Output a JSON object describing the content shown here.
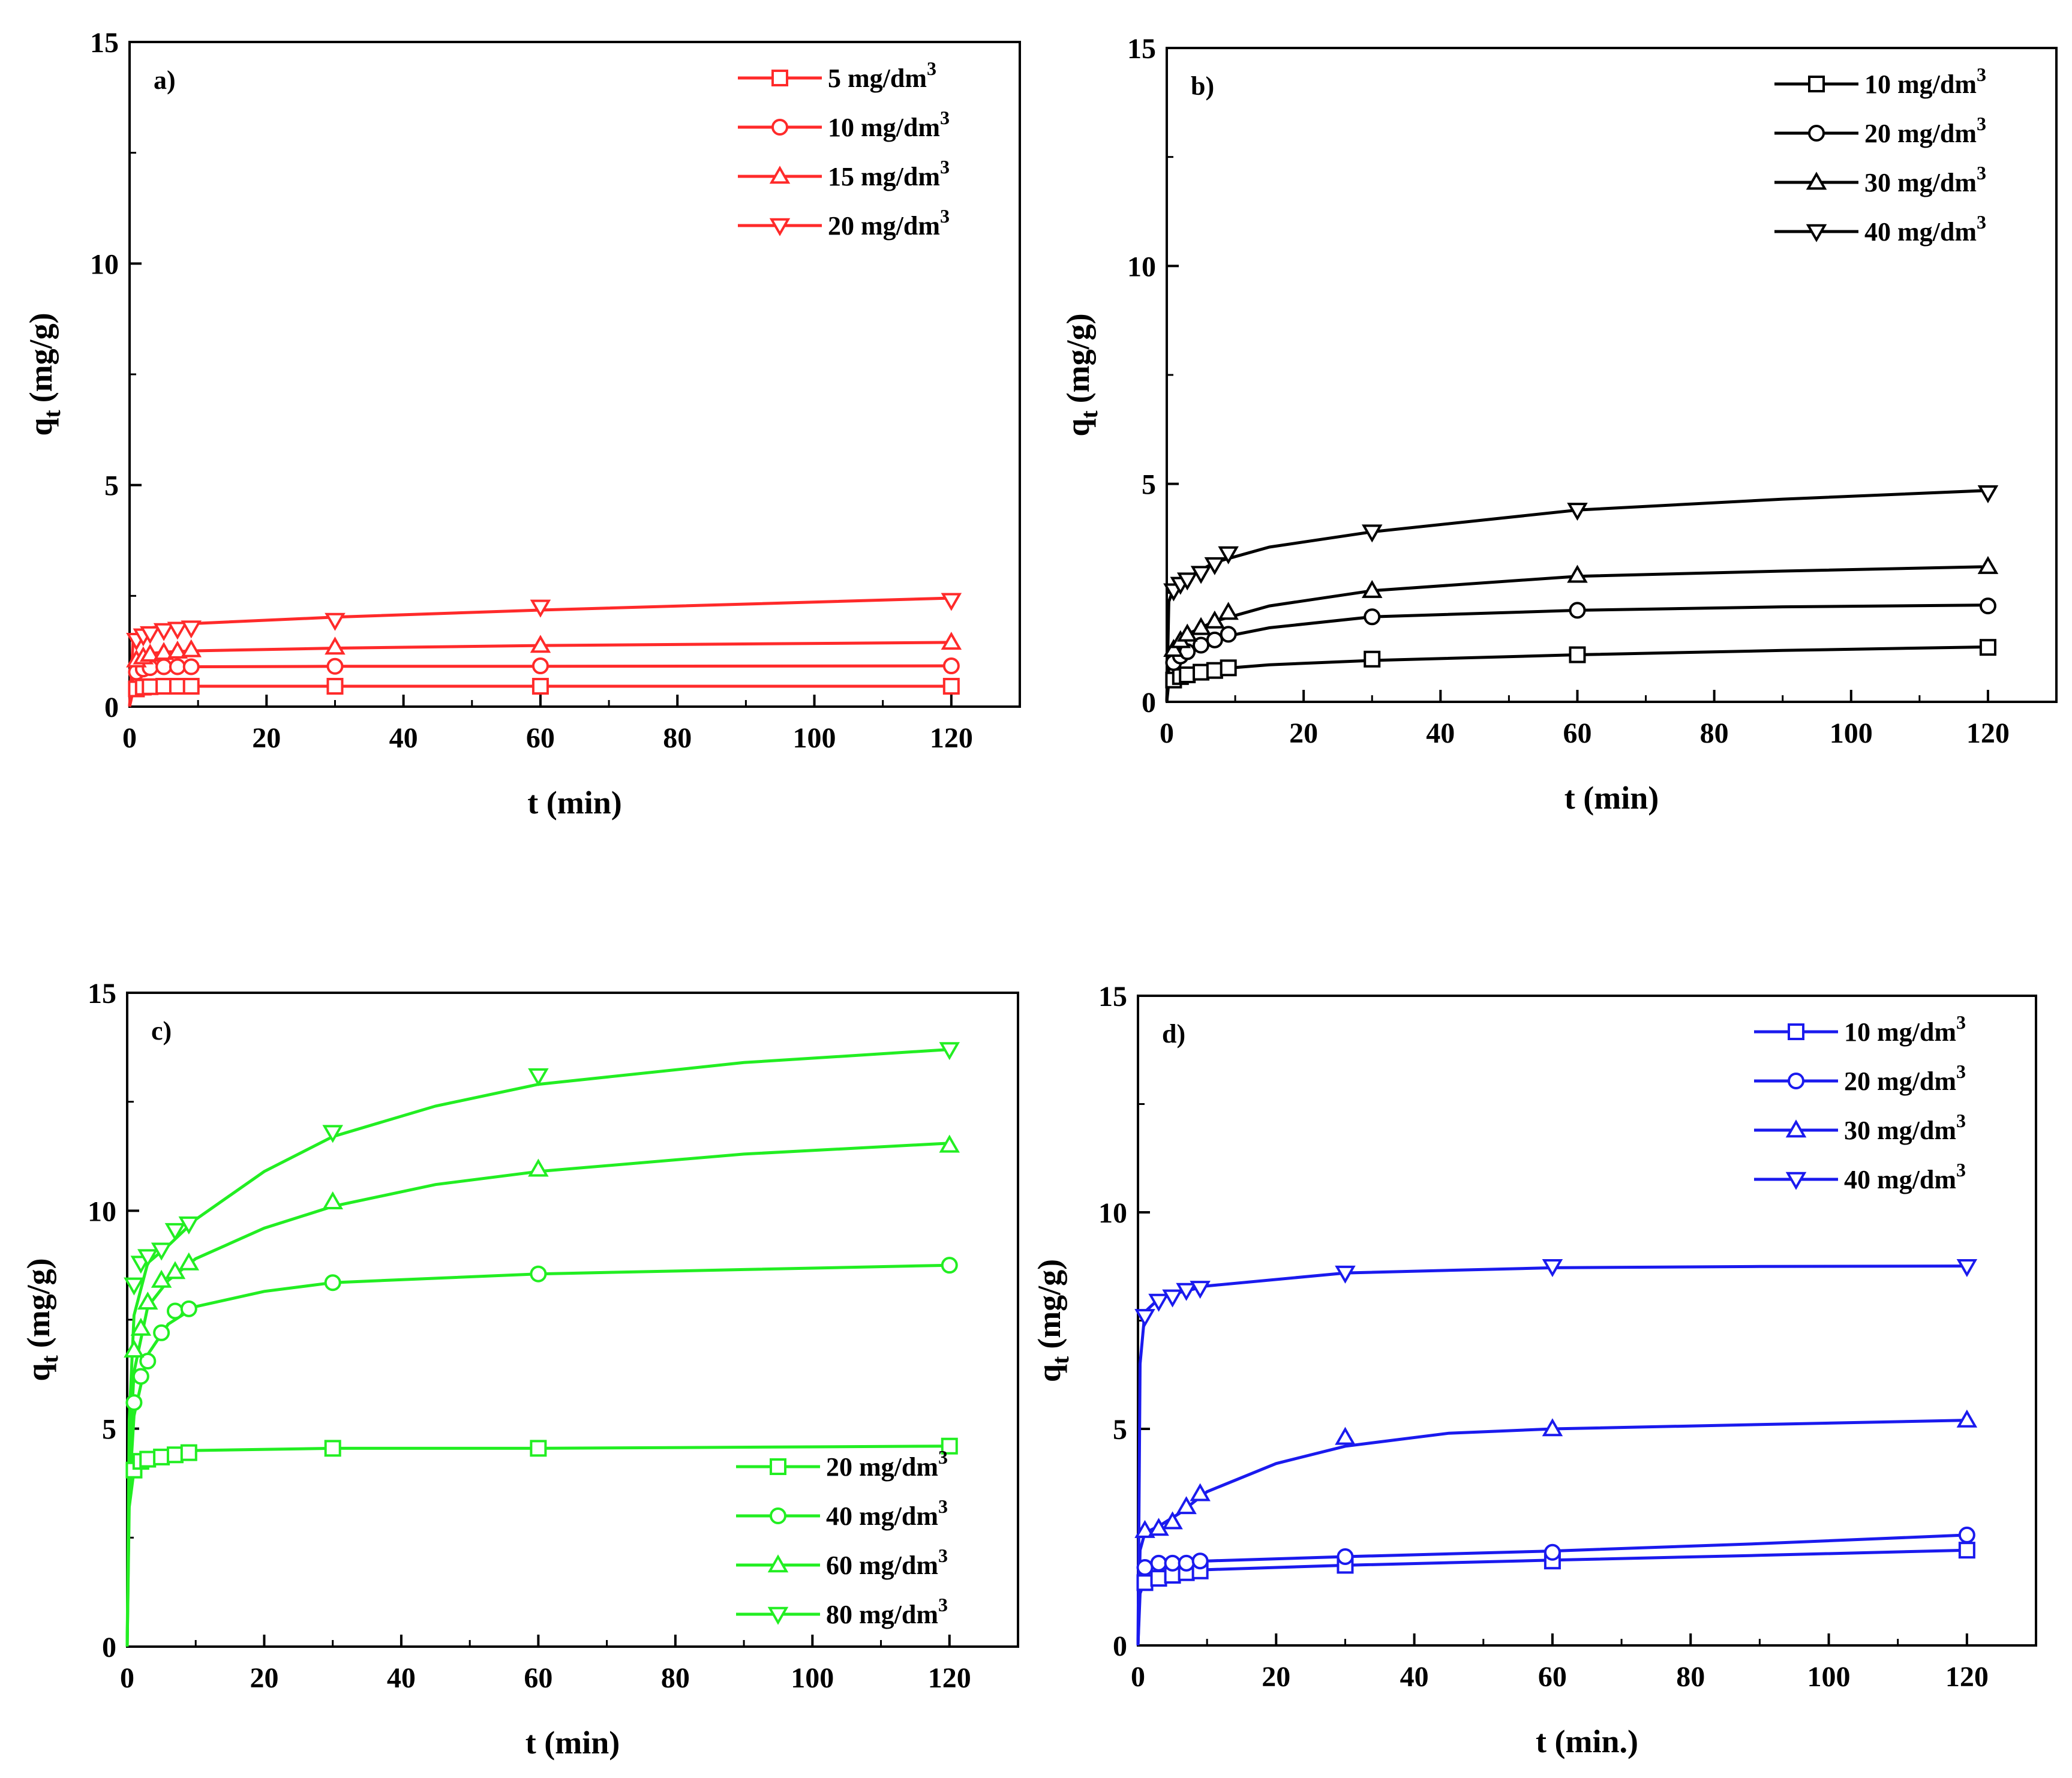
{
  "figure": {
    "panels": [
      {
        "id": "a",
        "panel_label": "a)",
        "color": "#ff2a2a",
        "legend_position": "top-right",
        "ylabel_main": "q",
        "ylabel_sub": "t",
        "ylabel_unit": "(mg/g)",
        "xlabel": "t (min)",
        "x_ticks": [
          "0",
          "20",
          "40",
          "60",
          "80",
          "100",
          "120"
        ],
        "y_ticks": [
          "0",
          "5",
          "10",
          "15"
        ]
      },
      {
        "id": "b",
        "panel_label": "b)",
        "color": "#000000",
        "legend_position": "top-right",
        "ylabel_main": "q",
        "ylabel_sub": "t",
        "ylabel_unit": "(mg/g)",
        "xlabel": "t (min)",
        "x_ticks": [
          "0",
          "20",
          "40",
          "60",
          "80",
          "100",
          "120"
        ],
        "y_ticks": [
          "0",
          "5",
          "10",
          "15"
        ]
      },
      {
        "id": "c",
        "panel_label": "c)",
        "color": "#22ee22",
        "legend_position": "bottom-right",
        "ylabel_main": "q",
        "ylabel_sub": "t",
        "ylabel_unit": "(mg/g)",
        "xlabel": "t (min)",
        "x_ticks": [
          "0",
          "20",
          "40",
          "60",
          "80",
          "100",
          "120"
        ],
        "y_ticks": [
          "0",
          "5",
          "10",
          "15"
        ]
      },
      {
        "id": "d",
        "panel_label": "d)",
        "color": "#1a1aee",
        "legend_position": "top-right",
        "ylabel_main": "q",
        "ylabel_sub": "t",
        "ylabel_unit": "(mg/g)",
        "xlabel": "t (min.)",
        "x_ticks": [
          "0",
          "20",
          "40",
          "60",
          "80",
          "100",
          "120"
        ],
        "y_ticks": [
          "0",
          "5",
          "10",
          "15"
        ]
      }
    ]
  },
  "chart_data": [
    {
      "type": "scatter",
      "panel": "a",
      "xlabel": "t (min)",
      "ylabel": "q_t (mg/g)",
      "xlim": [
        0,
        130
      ],
      "ylim": [
        0,
        15
      ],
      "x": [
        0,
        1,
        2,
        3,
        5,
        7,
        9,
        30,
        60,
        120
      ],
      "series": [
        {
          "name": "5 mg/dm3",
          "label_text": "5 mg/dm",
          "label_sup": "3",
          "marker": "square",
          "values": [
            0,
            0.4,
            0.44,
            0.45,
            0.46,
            0.46,
            0.46,
            0.46,
            0.46,
            0.46
          ]
        },
        {
          "name": "10 mg/dm3",
          "label_text": "10 mg/dm",
          "label_sup": "3",
          "marker": "circle",
          "values": [
            0,
            0.78,
            0.85,
            0.88,
            0.9,
            0.9,
            0.9,
            0.91,
            0.92,
            0.92
          ]
        },
        {
          "name": "15 mg/dm3",
          "label_text": "15 mg/dm",
          "label_sup": "3",
          "marker": "triangle-up",
          "values": [
            0,
            1.05,
            1.12,
            1.18,
            1.22,
            1.25,
            1.28,
            1.34,
            1.38,
            1.45
          ]
        },
        {
          "name": "20 mg/dm3",
          "label_text": "20 mg/dm",
          "label_sup": "3",
          "marker": "triangle-down",
          "values": [
            0,
            1.5,
            1.6,
            1.65,
            1.72,
            1.75,
            1.78,
            1.95,
            2.25,
            2.4
          ]
        }
      ],
      "fit_lines": [
        {
          "x": [
            0,
            0.5,
            1,
            2,
            5,
            10,
            30,
            60,
            120
          ],
          "values": [
            0,
            0.35,
            0.42,
            0.45,
            0.46,
            0.46,
            0.46,
            0.46,
            0.46
          ]
        },
        {
          "x": [
            0,
            0.5,
            1,
            2,
            5,
            10,
            30,
            60,
            120
          ],
          "values": [
            0,
            0.65,
            0.8,
            0.87,
            0.9,
            0.9,
            0.91,
            0.91,
            0.92
          ]
        },
        {
          "x": [
            0,
            0.5,
            1,
            2,
            5,
            10,
            30,
            60,
            120
          ],
          "values": [
            0,
            0.95,
            1.1,
            1.18,
            1.23,
            1.26,
            1.32,
            1.38,
            1.45
          ]
        },
        {
          "x": [
            0,
            0.5,
            1,
            2,
            5,
            10,
            30,
            60,
            120
          ],
          "values": [
            0,
            1.45,
            1.65,
            1.75,
            1.82,
            1.88,
            2.02,
            2.18,
            2.45
          ]
        }
      ]
    },
    {
      "type": "scatter",
      "panel": "b",
      "xlabel": "t (min)",
      "ylabel": "q_t (mg/g)",
      "xlim": [
        0,
        130
      ],
      "ylim": [
        0,
        15
      ],
      "x": [
        0,
        1,
        2,
        3,
        5,
        7,
        9,
        30,
        60,
        120
      ],
      "series": [
        {
          "name": "10 mg/dm3",
          "label_text": "10 mg/dm",
          "label_sup": "3",
          "marker": "square",
          "values": [
            0,
            0.5,
            0.58,
            0.62,
            0.68,
            0.72,
            0.78,
            0.98,
            1.08,
            1.25
          ]
        },
        {
          "name": "20 mg/dm3",
          "label_text": "20 mg/dm",
          "label_sup": "3",
          "marker": "circle",
          "values": [
            0,
            0.9,
            1.05,
            1.15,
            1.3,
            1.42,
            1.55,
            1.95,
            2.1,
            2.2
          ]
        },
        {
          "name": "30 mg/dm3",
          "label_text": "30 mg/dm",
          "label_sup": "3",
          "marker": "triangle-up",
          "values": [
            0,
            1.2,
            1.4,
            1.55,
            1.7,
            1.85,
            2.05,
            2.55,
            2.9,
            3.1
          ]
        },
        {
          "name": "40 mg/dm3",
          "label_text": "40 mg/dm",
          "label_sup": "3",
          "marker": "triangle-down",
          "values": [
            0,
            2.55,
            2.7,
            2.8,
            2.95,
            3.15,
            3.4,
            3.9,
            4.4,
            4.8
          ]
        }
      ],
      "fit_lines": [
        {
          "x": [
            0,
            0.3,
            1,
            3,
            7,
            15,
            30,
            60,
            90,
            120
          ],
          "values": [
            0,
            0.45,
            0.55,
            0.65,
            0.75,
            0.85,
            0.95,
            1.08,
            1.18,
            1.26
          ]
        },
        {
          "x": [
            0,
            0.3,
            1,
            3,
            7,
            15,
            30,
            60,
            90,
            120
          ],
          "values": [
            0,
            0.8,
            1.0,
            1.2,
            1.45,
            1.7,
            1.95,
            2.1,
            2.18,
            2.22
          ]
        },
        {
          "x": [
            0,
            0.3,
            1,
            3,
            7,
            15,
            30,
            60,
            90,
            120
          ],
          "values": [
            0,
            1.05,
            1.3,
            1.55,
            1.85,
            2.2,
            2.55,
            2.88,
            3.0,
            3.1
          ]
        },
        {
          "x": [
            0,
            0.3,
            1,
            3,
            7,
            15,
            30,
            60,
            90,
            120
          ],
          "values": [
            0,
            2.3,
            2.6,
            2.85,
            3.2,
            3.55,
            3.9,
            4.4,
            4.65,
            4.85
          ]
        }
      ]
    },
    {
      "type": "scatter",
      "panel": "c",
      "xlabel": "t (min)",
      "ylabel": "q_t (mg/g)",
      "xlim": [
        0,
        130
      ],
      "ylim": [
        0,
        15
      ],
      "x": [
        0,
        1,
        2,
        3,
        5,
        7,
        9,
        30,
        60,
        120
      ],
      "series": [
        {
          "name": "20 mg/dm3",
          "label_text": "20 mg/dm",
          "label_sup": "3",
          "marker": "square",
          "values": [
            0,
            4.05,
            4.25,
            4.3,
            4.35,
            4.4,
            4.45,
            4.55,
            4.55,
            4.6
          ]
        },
        {
          "name": "40 mg/dm3",
          "label_text": "40 mg/dm",
          "label_sup": "3",
          "marker": "circle",
          "values": [
            0,
            5.6,
            6.2,
            6.55,
            7.2,
            7.7,
            7.75,
            8.35,
            8.55,
            8.75
          ]
        },
        {
          "name": "60 mg/dm3",
          "label_text": "60 mg/dm",
          "label_sup": "3",
          "marker": "triangle-up",
          "values": [
            0,
            6.8,
            7.3,
            7.9,
            8.4,
            8.6,
            8.8,
            10.2,
            10.95,
            11.5
          ]
        },
        {
          "name": "80 mg/dm3",
          "label_text": "80 mg/dm",
          "label_sup": "3",
          "marker": "triangle-down",
          "values": [
            0,
            8.3,
            8.8,
            8.95,
            9.1,
            9.55,
            9.7,
            11.8,
            13.1,
            13.7
          ]
        }
      ],
      "fit_lines": [
        {
          "x": [
            0,
            0.3,
            1,
            2,
            5,
            10,
            30,
            60,
            120
          ],
          "values": [
            0,
            3.2,
            4.05,
            4.3,
            4.42,
            4.5,
            4.55,
            4.55,
            4.6
          ]
        },
        {
          "x": [
            0,
            0.3,
            1,
            3,
            6,
            10,
            20,
            30,
            60,
            90,
            120
          ],
          "values": [
            0,
            3.5,
            5.3,
            6.7,
            7.4,
            7.8,
            8.15,
            8.35,
            8.55,
            8.65,
            8.75
          ]
        },
        {
          "x": [
            0,
            0.3,
            1,
            3,
            6,
            10,
            20,
            30,
            45,
            60,
            90,
            120
          ],
          "values": [
            0,
            4.2,
            6.3,
            7.8,
            8.4,
            8.9,
            9.6,
            10.1,
            10.6,
            10.9,
            11.3,
            11.55
          ]
        },
        {
          "x": [
            0,
            0.3,
            1,
            3,
            6,
            10,
            20,
            30,
            45,
            60,
            90,
            120
          ],
          "values": [
            0,
            5.2,
            7.6,
            8.8,
            9.2,
            9.8,
            10.9,
            11.7,
            12.4,
            12.9,
            13.4,
            13.7
          ]
        }
      ]
    },
    {
      "type": "scatter",
      "panel": "d",
      "xlabel": "t (min.)",
      "ylabel": "q_t (mg/g)",
      "xlim": [
        0,
        130
      ],
      "ylim": [
        0,
        15
      ],
      "x": [
        0,
        1,
        3,
        5,
        7,
        9,
        30,
        60,
        120
      ],
      "series": [
        {
          "name": "10 mg/dm3",
          "label_text": "10 mg/dm",
          "label_sup": "3",
          "marker": "square",
          "values": [
            0,
            1.45,
            1.55,
            1.62,
            1.68,
            1.72,
            1.85,
            1.95,
            2.2
          ]
        },
        {
          "name": "20 mg/dm3",
          "label_text": "20 mg/dm",
          "label_sup": "3",
          "marker": "circle",
          "values": [
            0,
            1.8,
            1.9,
            1.9,
            1.9,
            1.95,
            2.05,
            2.15,
            2.55
          ]
        },
        {
          "name": "30 mg/dm3",
          "label_text": "30 mg/dm",
          "label_sup": "3",
          "marker": "triangle-up",
          "values": [
            0,
            2.65,
            2.7,
            2.85,
            3.2,
            3.5,
            4.8,
            5.0,
            5.2
          ]
        },
        {
          "name": "40 mg/dm3",
          "label_text": "40 mg/dm",
          "label_sup": "3",
          "marker": "triangle-down",
          "values": [
            0,
            7.6,
            7.95,
            8.05,
            8.2,
            8.25,
            8.6,
            8.75,
            8.75
          ]
        }
      ],
      "fit_lines": [
        {
          "x": [
            0,
            0.3,
            1,
            3,
            6,
            10,
            30,
            60,
            90,
            120
          ],
          "values": [
            0,
            1.2,
            1.5,
            1.62,
            1.7,
            1.75,
            1.85,
            1.97,
            2.08,
            2.2
          ]
        },
        {
          "x": [
            0,
            0.3,
            1,
            3,
            6,
            10,
            30,
            60,
            90,
            120
          ],
          "values": [
            0,
            1.5,
            1.8,
            1.9,
            1.92,
            1.95,
            2.05,
            2.18,
            2.35,
            2.55
          ]
        },
        {
          "x": [
            0,
            0.3,
            1,
            3,
            6,
            10,
            20,
            30,
            45,
            60,
            90,
            120
          ],
          "values": [
            0,
            2.2,
            2.6,
            2.75,
            3.05,
            3.55,
            4.2,
            4.6,
            4.9,
            5.0,
            5.1,
            5.2
          ]
        },
        {
          "x": [
            0,
            0.3,
            1,
            3,
            6,
            10,
            30,
            60,
            90,
            120
          ],
          "values": [
            0,
            6.5,
            7.7,
            8.0,
            8.15,
            8.3,
            8.6,
            8.72,
            8.75,
            8.76
          ]
        }
      ]
    }
  ]
}
